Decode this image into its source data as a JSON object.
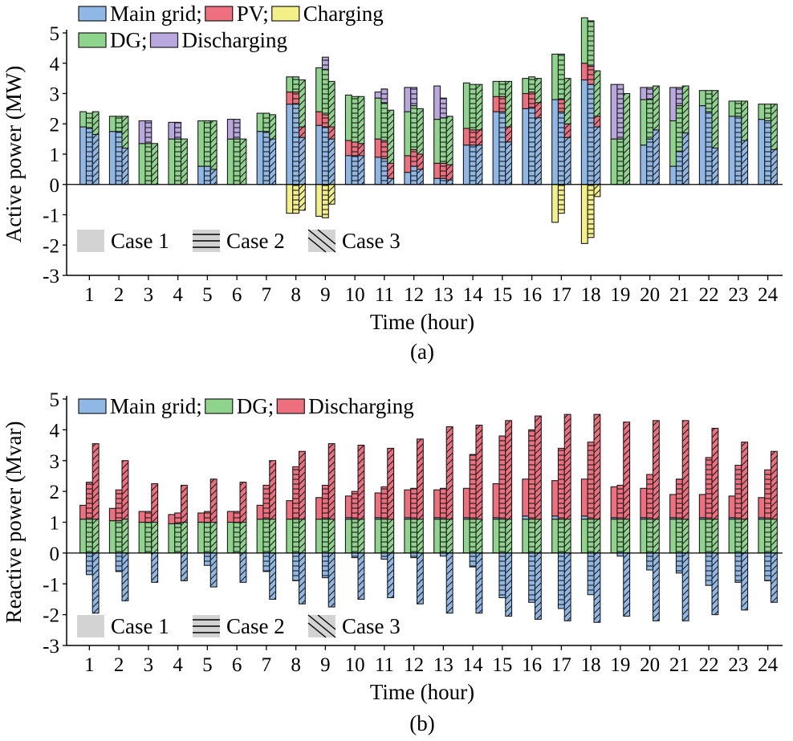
{
  "colors": {
    "main_grid": "#8fb8e6",
    "pv": "#ee6f7e",
    "charging": "#f2f087",
    "dg": "#8fd48c",
    "discharging": "#b9a8dd",
    "case_swatch": "#d3d3d3",
    "bar_outline": "#1a1a1a"
  },
  "chart_data": [
    {
      "type": "bar",
      "subtype": "stacked grouped bar",
      "panel_label": "(a)",
      "xlabel": "Time (hour)",
      "ylabel": "Active power (MW)",
      "ylim": [
        -3,
        5
      ],
      "yticks": [
        "5",
        "4",
        "3",
        "2",
        "1",
        "0",
        "-1",
        "-2",
        "-3"
      ],
      "categories": [
        "1",
        "2",
        "3",
        "4",
        "5",
        "6",
        "7",
        "8",
        "9",
        "10",
        "11",
        "12",
        "13",
        "14",
        "15",
        "16",
        "17",
        "18",
        "19",
        "20",
        "21",
        "22",
        "23",
        "24"
      ],
      "legend": [
        {
          "label": "Main grid;",
          "key": "main_grid"
        },
        {
          "label": "PV;",
          "key": "pv"
        },
        {
          "label": "Charging",
          "key": "charging"
        },
        {
          "label": "DG;",
          "key": "dg"
        },
        {
          "label": "Discharging",
          "key": "discharging"
        }
      ],
      "cases": [
        "Case 1",
        "Case 2",
        "Case 3"
      ],
      "series": [
        {
          "name": "Main grid",
          "key": "main_grid",
          "case1": [
            1.9,
            1.75,
            0,
            0,
            0.6,
            0,
            1.75,
            2.65,
            1.95,
            0.95,
            0.9,
            0.4,
            0.2,
            1.3,
            2.4,
            2.5,
            2.8,
            3.45,
            0,
            1.3,
            0.6,
            2.6,
            2.25,
            2.15
          ],
          "case2": [
            1.85,
            1.75,
            0,
            0,
            0.6,
            0,
            1.75,
            2.65,
            1.9,
            0.95,
            0.85,
            0.6,
            0.2,
            1.3,
            2.4,
            2.55,
            2.4,
            3.3,
            0,
            1.5,
            1.1,
            2.4,
            2.25,
            2.1
          ],
          "case3": [
            1.65,
            1.2,
            0,
            0,
            0.5,
            0,
            1.5,
            1.55,
            1.5,
            0.95,
            0.2,
            0.5,
            0.15,
            1.3,
            1.4,
            2.2,
            1.55,
            1.9,
            0,
            1.8,
            1.7,
            1.2,
            1.45,
            1.15
          ]
        },
        {
          "name": "PV",
          "key": "pv",
          "case1": [
            0,
            0,
            0,
            0,
            0,
            0,
            0,
            0.4,
            0.45,
            0.5,
            0.6,
            0.55,
            0.5,
            0.55,
            0.5,
            0.5,
            0,
            0.55,
            0,
            0,
            0,
            0,
            0,
            0
          ],
          "case2": [
            0,
            0,
            0,
            0,
            0,
            0,
            0,
            0.4,
            0.4,
            0.45,
            0.6,
            0.55,
            0.5,
            0.5,
            0.5,
            0.5,
            0.4,
            0.6,
            0,
            0,
            0,
            0,
            0,
            0
          ],
          "case3": [
            0,
            0,
            0,
            0,
            0,
            0,
            0,
            0.35,
            0.4,
            0.4,
            0.5,
            0.5,
            0.5,
            0.5,
            0.5,
            0.5,
            0.45,
            0.35,
            0,
            0,
            0,
            0,
            0,
            0
          ]
        },
        {
          "name": "DG",
          "key": "dg",
          "case1": [
            0.5,
            0.5,
            1.35,
            1.5,
            1.5,
            1.5,
            0.6,
            0.5,
            1.45,
            1.5,
            1.35,
            1.45,
            1.45,
            1.5,
            0.5,
            0.5,
            1.5,
            1.5,
            1.5,
            1.5,
            1.5,
            0.5,
            0.5,
            0.5
          ],
          "case2": [
            0.5,
            0.5,
            1.35,
            1.5,
            1.5,
            1.5,
            0.6,
            0.5,
            1.5,
            1.5,
            1.25,
            1.45,
            1.5,
            1.5,
            0.5,
            0.5,
            1.5,
            1.5,
            1.5,
            1.3,
            1.5,
            0.7,
            0.5,
            0.55
          ],
          "case3": [
            0.75,
            1.05,
            1.35,
            1.5,
            1.6,
            1.5,
            0.8,
            1.55,
            1.5,
            1.55,
            1.75,
            1.5,
            1.6,
            1.5,
            1.5,
            0.8,
            1.5,
            1.5,
            3.0,
            1.45,
            1.55,
            1.9,
            1.3,
            1.5
          ]
        },
        {
          "name": "Discharging",
          "key": "discharging",
          "case1": [
            0,
            0,
            0.75,
            0.55,
            0,
            0.65,
            0,
            0,
            0,
            0,
            0.2,
            0.8,
            1.1,
            0,
            0,
            0,
            0,
            0,
            1.8,
            0.4,
            1.1,
            0,
            0,
            0
          ],
          "case2": [
            0,
            0,
            0.75,
            0.55,
            0,
            0.65,
            0,
            0,
            0.4,
            0,
            0.45,
            0.6,
            0.65,
            0,
            0,
            0,
            0,
            0,
            1.8,
            0.4,
            0.6,
            0,
            0,
            0
          ],
          "case3": [
            0,
            0,
            0,
            0,
            0,
            0,
            0,
            0,
            0,
            0,
            0,
            0,
            0,
            0,
            0,
            0,
            0,
            0,
            0,
            0,
            0,
            0,
            0,
            0
          ]
        },
        {
          "name": "Charging",
          "key": "charging",
          "case1": [
            0,
            0,
            0,
            0,
            0,
            0,
            0,
            -0.95,
            -1.05,
            0,
            0,
            0,
            0,
            0,
            0,
            0,
            -1.25,
            -1.95,
            0,
            0,
            0,
            0,
            0,
            0
          ],
          "case2": [
            0,
            0,
            0,
            0,
            0,
            0,
            0,
            -0.95,
            -1.1,
            0,
            0,
            0,
            0,
            0,
            0,
            0,
            -0.95,
            -1.75,
            0,
            0,
            0,
            0,
            0,
            0
          ],
          "case3": [
            0,
            0,
            0,
            0,
            0,
            0,
            0,
            -0.85,
            -0.65,
            0,
            0,
            0,
            0,
            0,
            0,
            0,
            0,
            -0.4,
            0,
            0,
            0,
            0,
            0,
            0
          ]
        }
      ]
    },
    {
      "type": "bar",
      "subtype": "stacked grouped bar",
      "panel_label": "(b)",
      "xlabel": "Time (hour)",
      "ylabel": "Reactive power (Mvar)",
      "ylim": [
        -3,
        5
      ],
      "yticks": [
        "5",
        "4",
        "3",
        "2",
        "1",
        "0",
        "-1",
        "-2",
        "-3"
      ],
      "categories": [
        "1",
        "2",
        "3",
        "4",
        "5",
        "6",
        "7",
        "8",
        "9",
        "10",
        "11",
        "12",
        "13",
        "14",
        "15",
        "16",
        "17",
        "18",
        "19",
        "20",
        "21",
        "22",
        "23",
        "24"
      ],
      "legend": [
        {
          "label": "Main grid;",
          "key": "main_grid"
        },
        {
          "label": "DG;",
          "key": "dg"
        },
        {
          "label": "Discharging",
          "key": "pv"
        }
      ],
      "cases": [
        "Case 1",
        "Case 2",
        "Case 3"
      ],
      "series": [
        {
          "name": "DG",
          "key": "dg",
          "case1": [
            1.1,
            1.05,
            1.0,
            0.95,
            1.0,
            1.0,
            1.1,
            1.1,
            1.1,
            1.1,
            1.1,
            1.1,
            1.1,
            1.1,
            1.1,
            1.1,
            1.1,
            1.1,
            1.1,
            1.1,
            1.1,
            1.1,
            1.1,
            1.1
          ],
          "case2": [
            1.1,
            1.05,
            1.0,
            0.95,
            1.0,
            1.0,
            1.1,
            1.1,
            1.1,
            1.1,
            1.1,
            1.1,
            1.1,
            1.1,
            1.1,
            1.1,
            1.1,
            1.1,
            1.1,
            1.1,
            1.1,
            1.1,
            1.1,
            1.1
          ],
          "case3": [
            1.1,
            1.1,
            1.0,
            1.0,
            1.0,
            1.0,
            1.1,
            1.1,
            1.1,
            1.1,
            1.1,
            1.1,
            1.1,
            1.1,
            1.1,
            1.1,
            1.1,
            1.1,
            1.1,
            1.1,
            1.1,
            1.1,
            1.1,
            1.1
          ]
        },
        {
          "name": "Main grid",
          "key": "main_grid",
          "case1": [
            0,
            0,
            0,
            0,
            0,
            0,
            0,
            0,
            0,
            0.05,
            0.05,
            0.05,
            0.05,
            0.05,
            0.05,
            0.1,
            0.1,
            0.1,
            0.05,
            0.05,
            0.05,
            0.05,
            0.05,
            0.05
          ],
          "case2": [
            0,
            0,
            0,
            0,
            0,
            0,
            0,
            0,
            0,
            0,
            0,
            0,
            0,
            0,
            0,
            0,
            0,
            0,
            0,
            0,
            0,
            0,
            0,
            0
          ],
          "case3": [
            0,
            0,
            0,
            0,
            0,
            0,
            0,
            0,
            0,
            0,
            0,
            0,
            0,
            0,
            0,
            0,
            0,
            0,
            0,
            0,
            0,
            0,
            0,
            0
          ]
        },
        {
          "name": "Discharging",
          "key": "pv",
          "case1": [
            0.45,
            0.4,
            0.35,
            0.3,
            0.3,
            0.35,
            0.45,
            0.6,
            0.7,
            0.7,
            0.8,
            0.9,
            0.9,
            0.95,
            1.1,
            1.2,
            1.15,
            1.2,
            1.0,
            0.95,
            0.75,
            0.75,
            0.7,
            0.65
          ],
          "case2": [
            1.2,
            1.0,
            0.35,
            0.35,
            0.35,
            0.35,
            1.1,
            1.7,
            1.1,
            0.9,
            1.05,
            1.0,
            1.0,
            2.1,
            2.7,
            2.9,
            2.3,
            2.5,
            1.1,
            1.45,
            1.3,
            2.0,
            1.75,
            1.6
          ],
          "case3": [
            2.45,
            1.9,
            1.25,
            1.2,
            1.4,
            1.3,
            1.9,
            2.2,
            2.45,
            2.4,
            2.3,
            2.6,
            3.0,
            3.05,
            3.2,
            3.35,
            3.4,
            3.4,
            3.15,
            3.2,
            3.2,
            2.95,
            2.5,
            2.2
          ]
        },
        {
          "name": "Main grid (negative)",
          "key": "main_grid",
          "case1": [
            0,
            0,
            0,
            0,
            0,
            0,
            0,
            0,
            0,
            0,
            0,
            0,
            0,
            0,
            0,
            0,
            0,
            0,
            0,
            0,
            0,
            0,
            0,
            0
          ],
          "case2": [
            -0.7,
            -0.6,
            0,
            0,
            -0.4,
            0,
            -0.6,
            -0.9,
            -0.8,
            -0.15,
            -0.2,
            -0.15,
            -0.1,
            -0.45,
            -1.45,
            -1.6,
            -1.8,
            -1.35,
            -0.1,
            -0.55,
            -0.65,
            -1.05,
            -0.95,
            -0.9
          ],
          "case3": [
            -1.95,
            -1.55,
            -0.95,
            -0.9,
            -1.1,
            -0.95,
            -1.5,
            -1.65,
            -1.75,
            -1.5,
            -1.45,
            -1.65,
            -1.95,
            -1.95,
            -2.05,
            -2.15,
            -2.2,
            -2.25,
            -2.05,
            -2.2,
            -2.2,
            -2.0,
            -1.85,
            -1.6
          ]
        }
      ]
    }
  ]
}
